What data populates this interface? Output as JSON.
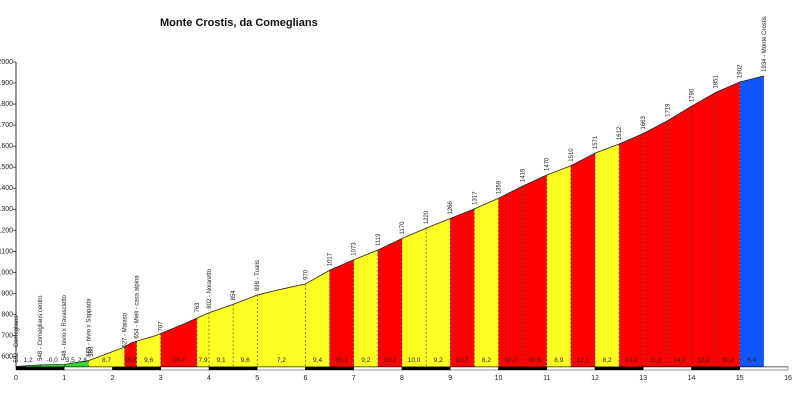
{
  "chart_data": {
    "type": "area",
    "title": "Monte Crostis, da Comeglians",
    "xlabel": "",
    "ylabel": "",
    "xlim": [
      0,
      16
    ],
    "ylim": [
      550,
      2000
    ],
    "x_ticks": [
      "0",
      "1",
      "2",
      "3",
      "4",
      "5",
      "6",
      "7",
      "8",
      "9",
      "10",
      "11",
      "12",
      "13",
      "14",
      "15",
      "16"
    ],
    "y_ticks": [
      "600",
      "700",
      "800",
      "900",
      "1000",
      "1100",
      "1200",
      "1300",
      "1400",
      "1500",
      "1600",
      "1700",
      "1800",
      "1900",
      "2000"
    ],
    "profile": [
      {
        "x": 0,
        "y": 552
      },
      {
        "x": 0.5,
        "y": 560
      },
      {
        "x": 1,
        "y": 562
      },
      {
        "x": 1.25,
        "y": 572
      },
      {
        "x": 1.5,
        "y": 580
      },
      {
        "x": 2,
        "y": 623
      },
      {
        "x": 2.2,
        "y": 640
      },
      {
        "x": 2.4,
        "y": 666
      },
      {
        "x": 2.9,
        "y": 700
      },
      {
        "x": 3.5,
        "y": 757
      },
      {
        "x": 4,
        "y": 808
      },
      {
        "x": 4.5,
        "y": 848
      },
      {
        "x": 5,
        "y": 892
      },
      {
        "x": 5.5,
        "y": 920
      },
      {
        "x": 6,
        "y": 945
      },
      {
        "x": 6.5,
        "y": 1010
      },
      {
        "x": 7,
        "y": 1060
      },
      {
        "x": 7.5,
        "y": 1106
      },
      {
        "x": 8,
        "y": 1161
      },
      {
        "x": 8.5,
        "y": 1210
      },
      {
        "x": 9,
        "y": 1256
      },
      {
        "x": 9.5,
        "y": 1302
      },
      {
        "x": 10,
        "y": 1352
      },
      {
        "x": 10.5,
        "y": 1410
      },
      {
        "x": 11,
        "y": 1463
      },
      {
        "x": 11.5,
        "y": 1507
      },
      {
        "x": 12,
        "y": 1567
      },
      {
        "x": 12.5,
        "y": 1610
      },
      {
        "x": 13,
        "y": 1660
      },
      {
        "x": 13.5,
        "y": 1720
      },
      {
        "x": 14,
        "y": 1790
      },
      {
        "x": 14.5,
        "y": 1855
      },
      {
        "x": 15,
        "y": 1905
      },
      {
        "x": 15.5,
        "y": 1934
      }
    ],
    "segments": [
      {
        "from": 0,
        "to": 0.5,
        "grade": "1,2",
        "color": "#33dd33"
      },
      {
        "from": 0.5,
        "to": 1.0,
        "grade": "-0,0",
        "color": "#33dd33"
      },
      {
        "from": 1.0,
        "to": 1.25,
        "grade": "3,5",
        "color": "#33dd33"
      },
      {
        "from": 1.25,
        "to": 1.5,
        "grade": "2,8",
        "color": "#33dd33"
      },
      {
        "from": 1.5,
        "to": 2.25,
        "grade": "8,7",
        "color": "#ffff22"
      },
      {
        "from": 2.25,
        "to": 2.5,
        "grade": "10,8",
        "color": "#ff0000"
      },
      {
        "from": 2.5,
        "to": 3.0,
        "grade": "9,6",
        "color": "#ffff22"
      },
      {
        "from": 3.0,
        "to": 3.75,
        "grade": "10,7",
        "color": "#ff0000"
      },
      {
        "from": 3.75,
        "to": 4.0,
        "grade": "7,9",
        "color": "#ffff22"
      },
      {
        "from": 4.0,
        "to": 4.5,
        "grade": "9,1",
        "color": "#ffff22"
      },
      {
        "from": 4.5,
        "to": 5.0,
        "grade": "9,6",
        "color": "#ffff22"
      },
      {
        "from": 5.0,
        "to": 6.0,
        "grade": "7,2",
        "color": "#ffff22"
      },
      {
        "from": 6.0,
        "to": 6.5,
        "grade": "9,4",
        "color": "#ffff22"
      },
      {
        "from": 6.5,
        "to": 7.0,
        "grade": "10,1",
        "color": "#ff0000"
      },
      {
        "from": 7.0,
        "to": 7.5,
        "grade": "9,2",
        "color": "#ffff22"
      },
      {
        "from": 7.5,
        "to": 8.0,
        "grade": "10,2",
        "color": "#ff0000"
      },
      {
        "from": 8.0,
        "to": 8.5,
        "grade": "10,0",
        "color": "#ffff22"
      },
      {
        "from": 8.5,
        "to": 9.0,
        "grade": "9,2",
        "color": "#ffff22"
      },
      {
        "from": 9.0,
        "to": 9.5,
        "grade": "10,7",
        "color": "#ff0000"
      },
      {
        "from": 9.5,
        "to": 10.0,
        "grade": "8,2",
        "color": "#ffff22"
      },
      {
        "from": 10.0,
        "to": 10.5,
        "grade": "10,2",
        "color": "#ff0000"
      },
      {
        "from": 10.5,
        "to": 11.0,
        "grade": "10,5",
        "color": "#ff0000"
      },
      {
        "from": 11.0,
        "to": 11.5,
        "grade": "8,9",
        "color": "#ffff22"
      },
      {
        "from": 11.5,
        "to": 12.0,
        "grade": "12,1",
        "color": "#ff0000"
      },
      {
        "from": 12.0,
        "to": 12.5,
        "grade": "8,2",
        "color": "#ffff22"
      },
      {
        "from": 12.5,
        "to": 13.0,
        "grade": "10,2",
        "color": "#ff0000"
      },
      {
        "from": 13.0,
        "to": 13.5,
        "grade": "11,3",
        "color": "#ff0000"
      },
      {
        "from": 13.5,
        "to": 14.0,
        "grade": "14,2",
        "color": "#ff0000"
      },
      {
        "from": 14.0,
        "to": 14.5,
        "grade": "12,2",
        "color": "#ff0000"
      },
      {
        "from": 14.5,
        "to": 15.0,
        "grade": "10,2",
        "color": "#ff0000"
      },
      {
        "from": 15.0,
        "to": 15.5,
        "grade": "6,4",
        "color": "#1155ff"
      }
    ],
    "annotations": [
      {
        "x": 0,
        "y": 552,
        "label": "552 - Comeglians"
      },
      {
        "x": 0.5,
        "y": 560,
        "label": "548 - Comeglians centro"
      },
      {
        "x": 1.0,
        "y": 562,
        "label": "548 - bivio x Ravascletto"
      },
      {
        "x": 1.5,
        "y": 580,
        "label": "565 - bivio x Sappada"
      },
      {
        "x": 1.55,
        "y": 580,
        "label": "580"
      },
      {
        "x": 2.25,
        "y": 623,
        "label": "627 - Maiaso"
      },
      {
        "x": 2.5,
        "y": 666,
        "label": "654 - Mieli - casa alpina"
      },
      {
        "x": 3.0,
        "y": 700,
        "label": "707"
      },
      {
        "x": 3.75,
        "y": 790,
        "label": "763"
      },
      {
        "x": 4.0,
        "y": 808,
        "label": "802 - Noiaretto"
      },
      {
        "x": 4.5,
        "y": 848,
        "label": "854"
      },
      {
        "x": 5.0,
        "y": 892,
        "label": "898 - Tualis"
      },
      {
        "x": 6.0,
        "y": 945,
        "label": "970"
      },
      {
        "x": 6.5,
        "y": 1010,
        "label": "1017"
      },
      {
        "x": 7.0,
        "y": 1060,
        "label": "1073"
      },
      {
        "x": 7.5,
        "y": 1106,
        "label": "1119"
      },
      {
        "x": 8.0,
        "y": 1161,
        "label": "1170"
      },
      {
        "x": 8.5,
        "y": 1210,
        "label": "1220"
      },
      {
        "x": 9.0,
        "y": 1256,
        "label": "1266"
      },
      {
        "x": 9.5,
        "y": 1302,
        "label": "1317"
      },
      {
        "x": 10.0,
        "y": 1352,
        "label": "1359"
      },
      {
        "x": 10.5,
        "y": 1410,
        "label": "1419"
      },
      {
        "x": 11.0,
        "y": 1463,
        "label": "1470"
      },
      {
        "x": 11.5,
        "y": 1507,
        "label": "1510"
      },
      {
        "x": 12.0,
        "y": 1567,
        "label": "1571"
      },
      {
        "x": 12.5,
        "y": 1610,
        "label": "1612"
      },
      {
        "x": 13.0,
        "y": 1660,
        "label": "1663"
      },
      {
        "x": 13.5,
        "y": 1720,
        "label": "1719"
      },
      {
        "x": 14.0,
        "y": 1790,
        "label": "1790"
      },
      {
        "x": 14.5,
        "y": 1855,
        "label": "1851"
      },
      {
        "x": 15.0,
        "y": 1905,
        "label": "1902"
      },
      {
        "x": 15.5,
        "y": 1934,
        "label": "1934 - Monte Crostis"
      }
    ],
    "grid": false,
    "legend": "none"
  }
}
